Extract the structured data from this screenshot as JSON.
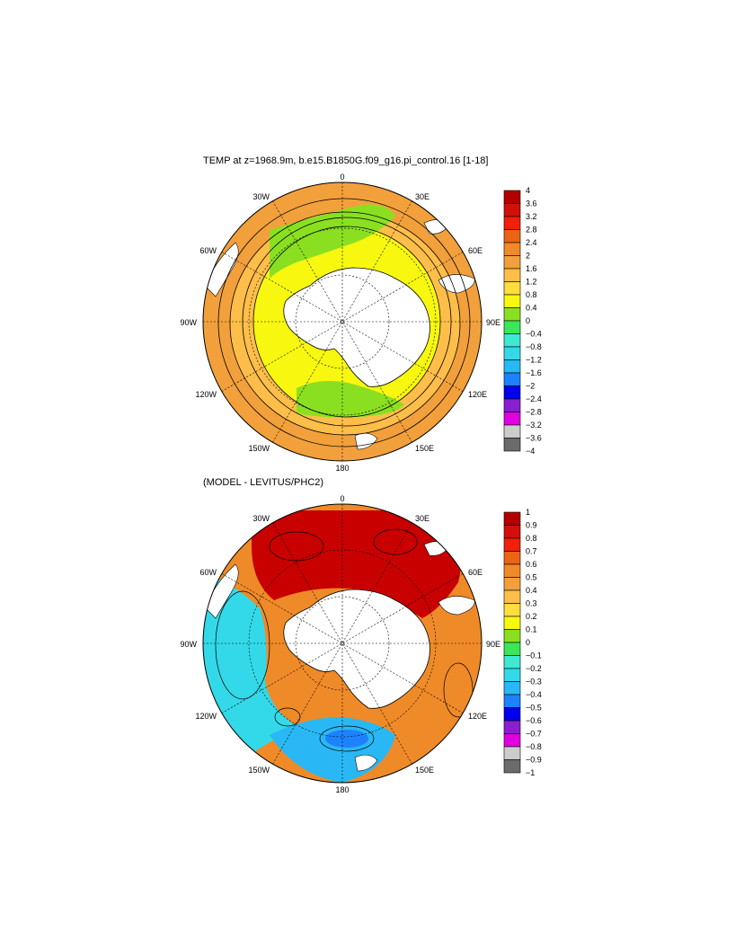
{
  "maps": [
    {
      "title": "TEMP at z=1968.9m, b.e15.B1850G.f09_g16.pi_control.16 [1-18]",
      "longitude_labels": [
        "0",
        "30E",
        "60E",
        "90E",
        "120E",
        "150E",
        "180",
        "150W",
        "120W",
        "90W",
        "60W",
        "30W"
      ],
      "colorbar": {
        "colors": [
          "#6b6b6b",
          "#cccccc",
          "#e000e0",
          "#8a1fd0",
          "#0000ee",
          "#1e82ff",
          "#29b8f5",
          "#33d9e8",
          "#40e8d2",
          "#3ae65a",
          "#8ae020",
          "#f7f710",
          "#ffdc40",
          "#ffbe4a",
          "#f2a03c",
          "#ef8a28",
          "#ea6414",
          "#f0200a",
          "#d2100a",
          "#b20000"
        ],
        "labels": [
          "4",
          "3.6",
          "3.2",
          "2.8",
          "2.4",
          "2",
          "1.6",
          "1.2",
          "0.8",
          "0.4",
          "0",
          "−0.4",
          "−0.8",
          "−1.2",
          "−1.6",
          "−2",
          "−2.4",
          "−2.8",
          "−3.2",
          "−3.6",
          "−4"
        ]
      },
      "field_colors": {
        "outer": "#f2a03c",
        "mid": "#ffbe4a",
        "inner_ring": "#f7f710",
        "green_patch": "#8ae020",
        "land": "#ffffff"
      }
    },
    {
      "title": "(MODEL - LEVITUS/PHC2)",
      "longitude_labels": [
        "0",
        "30E",
        "60E",
        "90E",
        "120E",
        "150E",
        "180",
        "150W",
        "120W",
        "90W",
        "60W",
        "30W"
      ],
      "colorbar": {
        "colors": [
          "#6b6b6b",
          "#cccccc",
          "#e000e0",
          "#8a1fd0",
          "#0000ee",
          "#1e82ff",
          "#29b8f5",
          "#33d9e8",
          "#40e8d2",
          "#3ae65a",
          "#8ae020",
          "#f7f710",
          "#ffdc40",
          "#ffbe4a",
          "#f2a03c",
          "#ef8a28",
          "#ea6414",
          "#f0200a",
          "#d2100a",
          "#b20000"
        ],
        "labels": [
          "1",
          "0.9",
          "0.8",
          "0.7",
          "0.6",
          "0.5",
          "0.4",
          "0.3",
          "0.2",
          "0.1",
          "0",
          "−0.1",
          "−0.2",
          "−0.3",
          "−0.4",
          "−0.5",
          "−0.6",
          "−0.7",
          "−0.8",
          "−0.9",
          "−1"
        ]
      },
      "field_colors": {
        "north": "#c80000",
        "east": "#ef8a28",
        "west": "#33d9e8",
        "south": "#29b8f5",
        "deep": "#1e82ff",
        "land": "#ffffff"
      }
    }
  ]
}
